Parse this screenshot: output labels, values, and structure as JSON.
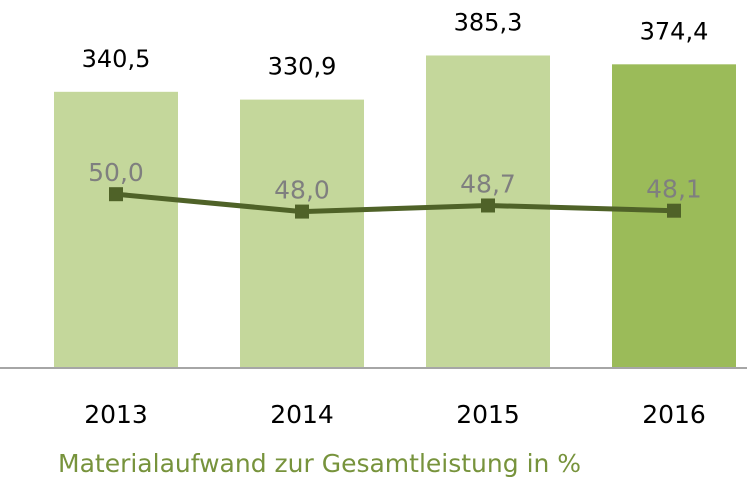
{
  "chart_data": {
    "type": "bar-line",
    "categories": [
      "2013",
      "2014",
      "2015",
      "2016"
    ],
    "series": [
      {
        "type": "bar",
        "colors": [
          "#c4d79b",
          "#c4d79b",
          "#c4d79b",
          "#9bbb59"
        ],
        "values": [
          340.5,
          330.9,
          385.3,
          374.4
        ],
        "value_labels": [
          "340,5",
          "330,9",
          "385,3",
          "374,4"
        ]
      },
      {
        "type": "line",
        "axis": "y2",
        "name": "Materialaufwand zur Gesamtleistung in %",
        "color": "#4f6228",
        "values": [
          50.0,
          48.0,
          48.7,
          48.1
        ],
        "value_labels": [
          "50,0",
          "48,0",
          "48,7",
          "48,1"
        ]
      }
    ],
    "ylim": [
      0,
      450
    ],
    "y2lim": [
      30,
      72
    ],
    "grid": false,
    "legend": "bottom-left"
  }
}
